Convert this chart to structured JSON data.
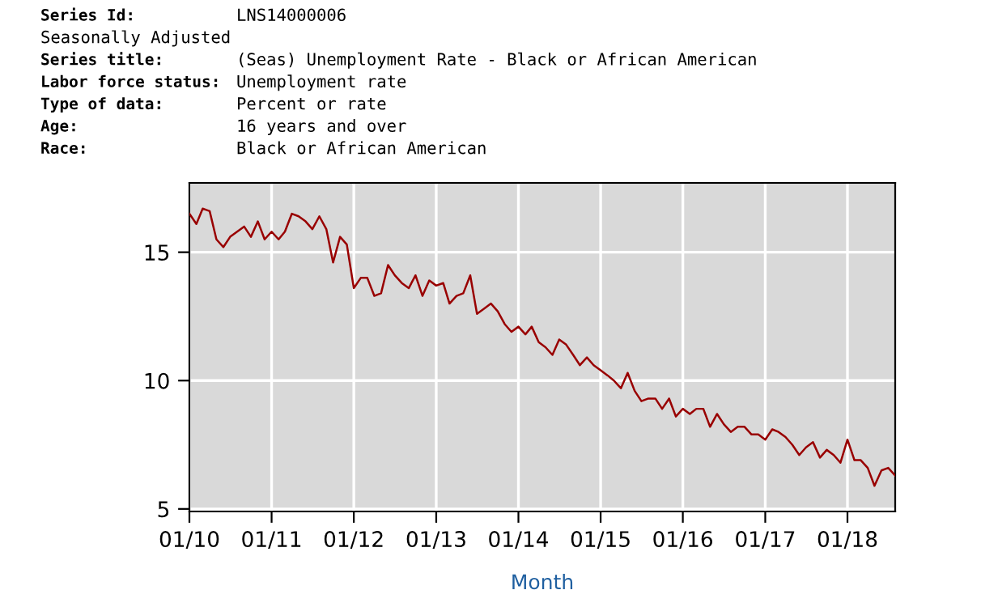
{
  "chart_data": {
    "type": "line",
    "annotations": [
      "Series Id: LNS14000006",
      "Seasonally Adjusted",
      "Series title: (Seas) Unemployment Rate - Black or African American",
      "Labor force status: Unemployment rate",
      "Type of data: Percent or rate",
      "Age: 16 years and over",
      "Race: Black or African American"
    ],
    "xlabel": "Month",
    "x": [
      "2010-01",
      "2010-02",
      "2010-03",
      "2010-04",
      "2010-05",
      "2010-06",
      "2010-07",
      "2010-08",
      "2010-09",
      "2010-10",
      "2010-11",
      "2010-12",
      "2011-01",
      "2011-02",
      "2011-03",
      "2011-04",
      "2011-05",
      "2011-06",
      "2011-07",
      "2011-08",
      "2011-09",
      "2011-10",
      "2011-11",
      "2011-12",
      "2012-01",
      "2012-02",
      "2012-03",
      "2012-04",
      "2012-05",
      "2012-06",
      "2012-07",
      "2012-08",
      "2012-09",
      "2012-10",
      "2012-11",
      "2012-12",
      "2013-01",
      "2013-02",
      "2013-03",
      "2013-04",
      "2013-05",
      "2013-06",
      "2013-07",
      "2013-08",
      "2013-09",
      "2013-10",
      "2013-11",
      "2013-12",
      "2014-01",
      "2014-02",
      "2014-03",
      "2014-04",
      "2014-05",
      "2014-06",
      "2014-07",
      "2014-08",
      "2014-09",
      "2014-10",
      "2014-11",
      "2014-12",
      "2015-01",
      "2015-02",
      "2015-03",
      "2015-04",
      "2015-05",
      "2015-06",
      "2015-07",
      "2015-08",
      "2015-09",
      "2015-10",
      "2015-11",
      "2015-12",
      "2016-01",
      "2016-02",
      "2016-03",
      "2016-04",
      "2016-05",
      "2016-06",
      "2016-07",
      "2016-08",
      "2016-09",
      "2016-10",
      "2016-11",
      "2016-12",
      "2017-01",
      "2017-02",
      "2017-03",
      "2017-04",
      "2017-05",
      "2017-06",
      "2017-07",
      "2017-08",
      "2017-09",
      "2017-10",
      "2017-11",
      "2017-12",
      "2018-01",
      "2018-02",
      "2018-03",
      "2018-04",
      "2018-05",
      "2018-06",
      "2018-07",
      "2018-08"
    ],
    "series": [
      {
        "color": "#990000",
        "values": [
          16.5,
          16.1,
          16.7,
          16.6,
          15.5,
          15.2,
          15.6,
          15.8,
          16.0,
          15.6,
          16.2,
          15.5,
          15.8,
          15.5,
          15.8,
          16.5,
          16.4,
          16.2,
          15.9,
          16.4,
          15.9,
          14.6,
          15.6,
          15.3,
          13.6,
          14.0,
          14.0,
          13.3,
          13.4,
          14.5,
          14.1,
          13.8,
          13.6,
          14.1,
          13.3,
          13.9,
          13.7,
          13.8,
          13.0,
          13.3,
          13.4,
          14.1,
          12.6,
          12.8,
          13.0,
          12.7,
          12.2,
          11.9,
          12.1,
          11.8,
          12.1,
          11.5,
          11.3,
          11.0,
          11.6,
          11.4,
          11.0,
          10.6,
          10.9,
          10.6,
          10.4,
          10.2,
          10.0,
          9.7,
          10.3,
          9.6,
          9.2,
          9.3,
          9.3,
          8.9,
          9.3,
          8.6,
          8.9,
          8.7,
          8.9,
          8.9,
          8.2,
          8.7,
          8.3,
          8.0,
          8.2,
          8.2,
          7.9,
          7.9,
          7.7,
          8.1,
          8.0,
          7.8,
          7.5,
          7.1,
          7.4,
          7.6,
          7.0,
          7.3,
          7.1,
          6.8,
          7.7,
          6.9,
          6.9,
          6.6,
          5.9,
          6.5,
          6.6,
          6.3
        ]
      }
    ],
    "xlim": [
      "2010-01",
      "2018-08"
    ],
    "xticks": [
      {
        "value": "2010-01",
        "label": "01/10"
      },
      {
        "value": "2011-01",
        "label": "01/11"
      },
      {
        "value": "2012-01",
        "label": "01/12"
      },
      {
        "value": "2013-01",
        "label": "01/13"
      },
      {
        "value": "2014-01",
        "label": "01/14"
      },
      {
        "value": "2015-01",
        "label": "01/15"
      },
      {
        "value": "2016-01",
        "label": "01/16"
      },
      {
        "value": "2017-01",
        "label": "01/17"
      },
      {
        "value": "2018-01",
        "label": "01/18"
      }
    ],
    "ylim": [
      4.9,
      17.7
    ],
    "yticks": [
      5,
      10,
      15
    ],
    "grid": true,
    "marker": "none",
    "line_style": "solid"
  }
}
